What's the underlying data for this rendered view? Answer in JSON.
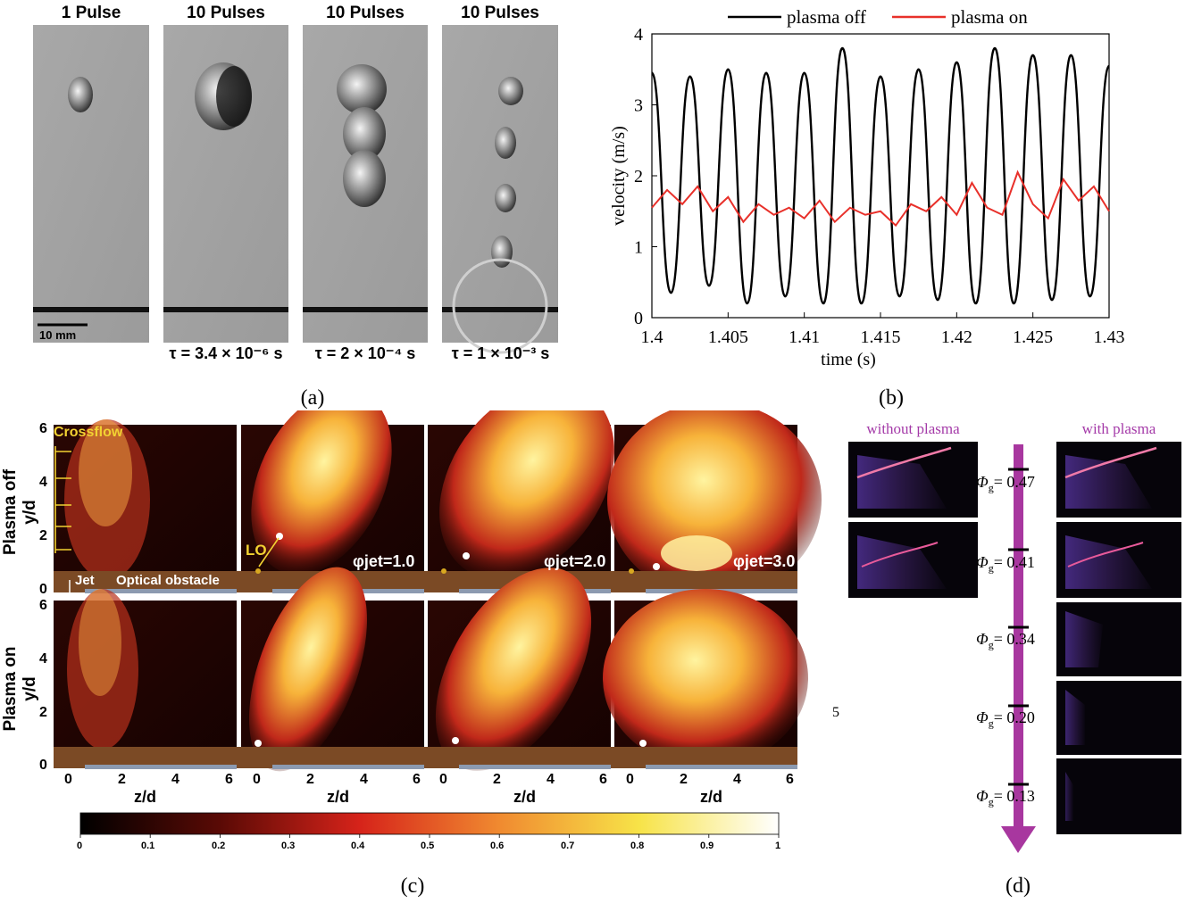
{
  "panel_a": {
    "headers": [
      "1 Pulse",
      "10 Pulses",
      "10 Pulses",
      "10 Pulses"
    ],
    "scale_bar": "10 mm",
    "taus": [
      "τ = 3.4 × 10⁻⁶ s",
      "τ = 2 × 10⁻⁴ s",
      "τ = 1 × 10⁻³ s"
    ],
    "caption": "(a)"
  },
  "panel_b": {
    "caption": "(b)",
    "chart_data": {
      "type": "line",
      "xlabel": "time (s)",
      "ylabel": "velocity (m/s)",
      "xlim": [
        1.4,
        1.43
      ],
      "ylim": [
        0,
        4
      ],
      "xticks": [
        1.4,
        1.405,
        1.41,
        1.415,
        1.42,
        1.425,
        1.43
      ],
      "xtick_labels": [
        "1.4",
        "1.405",
        "1.41",
        "1.415",
        "1.42",
        "1.425",
        "1.43"
      ],
      "yticks": [
        0,
        1,
        2,
        3,
        4
      ],
      "ytick_labels": [
        "0",
        "1",
        "2",
        "3",
        "4"
      ],
      "legend_position": "top",
      "series": [
        {
          "name": "plasma off",
          "color": "#000000",
          "x": [
            1.4,
            1.40125,
            1.4025,
            1.40375,
            1.405,
            1.40625,
            1.4075,
            1.40875,
            1.41,
            1.41125,
            1.4125,
            1.41375,
            1.415,
            1.41625,
            1.4175,
            1.41875,
            1.42,
            1.42125,
            1.4225,
            1.42375,
            1.425,
            1.42625,
            1.4275,
            1.42875,
            1.43
          ],
          "y": [
            3.45,
            0.35,
            3.4,
            0.45,
            3.5,
            0.2,
            3.45,
            0.3,
            3.45,
            0.2,
            3.8,
            0.2,
            3.4,
            0.3,
            3.5,
            0.25,
            3.6,
            0.2,
            3.8,
            0.2,
            3.7,
            0.25,
            3.7,
            0.3,
            3.55
          ]
        },
        {
          "name": "plasma on",
          "color": "#e8302a",
          "x": [
            1.4,
            1.401,
            1.402,
            1.403,
            1.404,
            1.405,
            1.406,
            1.407,
            1.408,
            1.409,
            1.41,
            1.411,
            1.412,
            1.413,
            1.414,
            1.415,
            1.416,
            1.417,
            1.418,
            1.419,
            1.42,
            1.421,
            1.422,
            1.423,
            1.424,
            1.425,
            1.426,
            1.427,
            1.428,
            1.429,
            1.43
          ],
          "y": [
            1.55,
            1.8,
            1.6,
            1.85,
            1.5,
            1.7,
            1.35,
            1.6,
            1.45,
            1.55,
            1.4,
            1.65,
            1.35,
            1.55,
            1.45,
            1.5,
            1.3,
            1.6,
            1.5,
            1.7,
            1.45,
            1.9,
            1.55,
            1.45,
            2.05,
            1.6,
            1.4,
            1.95,
            1.65,
            1.85,
            1.5
          ]
        }
      ]
    }
  },
  "panel_c": {
    "caption": "(c)",
    "row_labels": [
      "Plasma off",
      "Plasma on"
    ],
    "axis_label_y": "y/d",
    "axis_label_z": "z/d",
    "y_ticks": [
      "6",
      "4",
      "2",
      "0"
    ],
    "z_ticks": [
      "0",
      "2",
      "4",
      "6"
    ],
    "annotations": {
      "crossflow": "Crossflow",
      "jet": "Jet",
      "obstacle": "Optical obstacle",
      "lo": "LO"
    },
    "phi_labels": [
      "φjet=1.0",
      "φjet=2.0",
      "φjet=3.0"
    ],
    "colorbar": {
      "ticks": [
        "0",
        "0.1",
        "0.2",
        "0.3",
        "0.4",
        "0.5",
        "0.6",
        "0.7",
        "0.8",
        "0.9",
        "1"
      ]
    }
  },
  "page_number": "5",
  "panel_d": {
    "caption": "(d)",
    "left_title": "without plasma",
    "right_title": "with plasma",
    "phi_values": [
      "= 0.47",
      "= 0.41",
      "= 0.34",
      "= 0.20",
      "= 0.13"
    ],
    "title_color": "#a43aa8"
  }
}
